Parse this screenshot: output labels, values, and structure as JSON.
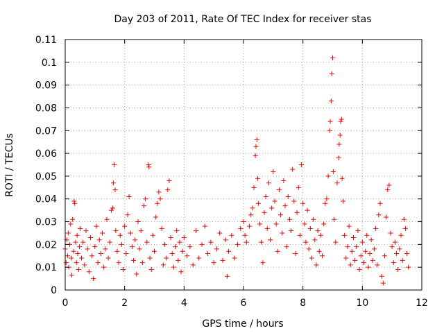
{
  "chart_data": {
    "type": "scatter",
    "title": "Day 203 of 2011, Rate Of TEC Index for receiver stas",
    "xlabel": "GPS time / hours",
    "ylabel": "ROTI / TECUs",
    "xlim": [
      0,
      12
    ],
    "ylim": [
      0,
      0.11
    ],
    "x_ticks": [
      "0",
      "2",
      "4",
      "6",
      "8",
      "10",
      "12"
    ],
    "y_ticks": [
      "0",
      "0.01",
      "0.02",
      "0.03",
      "0.04",
      "0.05",
      "0.06",
      "0.07",
      "0.08",
      "0.09",
      "0.1",
      "0.11"
    ],
    "grid": true,
    "marker": "+",
    "color": "#ff0000",
    "series": [
      {
        "points": [
          [
            0.0,
            0.018
          ],
          [
            0.03,
            0.012
          ],
          [
            0.05,
            0.022
          ],
          [
            0.08,
            0.015
          ],
          [
            0.1,
            0.025
          ],
          [
            0.12,
            0.01
          ],
          [
            0.15,
            0.02
          ],
          [
            0.18,
            0.029
          ],
          [
            0.2,
            0.014
          ],
          [
            0.22,
            0.0065
          ],
          [
            0.25,
            0.031
          ],
          [
            0.28,
            0.017
          ],
          [
            0.3,
            0.039
          ],
          [
            0.32,
            0.038
          ],
          [
            0.35,
            0.021
          ],
          [
            0.38,
            0.012
          ],
          [
            0.4,
            0.024
          ],
          [
            0.42,
            0.016
          ],
          [
            0.45,
            0.009
          ],
          [
            0.48,
            0.019
          ],
          [
            0.5,
            0.027
          ],
          [
            0.55,
            0.014
          ],
          [
            0.6,
            0.021
          ],
          [
            0.65,
            0.011
          ],
          [
            0.7,
            0.026
          ],
          [
            0.75,
            0.018
          ],
          [
            0.8,
            0.008
          ],
          [
            0.85,
            0.023
          ],
          [
            0.9,
            0.015
          ],
          [
            0.95,
            0.005
          ],
          [
            1.0,
            0.019
          ],
          [
            1.05,
            0.028
          ],
          [
            1.1,
            0.012
          ],
          [
            1.15,
            0.022
          ],
          [
            1.2,
            0.016
          ],
          [
            1.25,
            0.025
          ],
          [
            1.3,
            0.01
          ],
          [
            1.35,
            0.018
          ],
          [
            1.4,
            0.031
          ],
          [
            1.45,
            0.014
          ],
          [
            1.5,
            0.021
          ],
          [
            1.55,
            0.035
          ],
          [
            1.6,
            0.036
          ],
          [
            1.62,
            0.047
          ],
          [
            1.65,
            0.055
          ],
          [
            1.68,
            0.044
          ],
          [
            1.7,
            0.026
          ],
          [
            1.75,
            0.017
          ],
          [
            1.8,
            0.012
          ],
          [
            1.85,
            0.024
          ],
          [
            1.9,
            0.02
          ],
          [
            1.95,
            0.009
          ],
          [
            2.0,
            0.028
          ],
          [
            2.05,
            0.016
          ],
          [
            2.1,
            0.033
          ],
          [
            2.15,
            0.041
          ],
          [
            2.2,
            0.025
          ],
          [
            2.25,
            0.019
          ],
          [
            2.3,
            0.013
          ],
          [
            2.35,
            0.022
          ],
          [
            2.4,
            0.007
          ],
          [
            2.45,
            0.03
          ],
          [
            2.5,
            0.018
          ],
          [
            2.55,
            0.026
          ],
          [
            2.6,
            0.012
          ],
          [
            2.65,
            0.037
          ],
          [
            2.7,
            0.04
          ],
          [
            2.75,
            0.021
          ],
          [
            2.8,
            0.055
          ],
          [
            2.82,
            0.054
          ],
          [
            2.85,
            0.014
          ],
          [
            2.9,
            0.009
          ],
          [
            2.95,
            0.024
          ],
          [
            3.0,
            0.017
          ],
          [
            3.05,
            0.032
          ],
          [
            3.1,
            0.038
          ],
          [
            3.15,
            0.043
          ],
          [
            3.2,
            0.04
          ],
          [
            3.25,
            0.027
          ],
          [
            3.3,
            0.011
          ],
          [
            3.35,
            0.02
          ],
          [
            3.4,
            0.014
          ],
          [
            3.45,
            0.044
          ],
          [
            3.5,
            0.048
          ],
          [
            3.55,
            0.023
          ],
          [
            3.6,
            0.016
          ],
          [
            3.65,
            0.01
          ],
          [
            3.7,
            0.019
          ],
          [
            3.75,
            0.026
          ],
          [
            3.8,
            0.013
          ],
          [
            3.85,
            0.021
          ],
          [
            3.9,
            0.008
          ],
          [
            3.95,
            0.017
          ],
          [
            4.0,
            0.023
          ],
          [
            4.1,
            0.015
          ],
          [
            4.2,
            0.019
          ],
          [
            4.3,
            0.011
          ],
          [
            4.4,
            0.026
          ],
          [
            4.5,
            0.014
          ],
          [
            4.6,
            0.02
          ],
          [
            4.7,
            0.028
          ],
          [
            4.8,
            0.016
          ],
          [
            4.9,
            0.021
          ],
          [
            5.0,
            0.012
          ],
          [
            5.1,
            0.018
          ],
          [
            5.2,
            0.025
          ],
          [
            5.3,
            0.013
          ],
          [
            5.4,
            0.022
          ],
          [
            5.45,
            0.006
          ],
          [
            5.5,
            0.017
          ],
          [
            5.6,
            0.024
          ],
          [
            5.7,
            0.014
          ],
          [
            5.8,
            0.02
          ],
          [
            5.9,
            0.027
          ],
          [
            6.0,
            0.03
          ],
          [
            6.05,
            0.024
          ],
          [
            6.1,
            0.021
          ],
          [
            6.2,
            0.028
          ],
          [
            6.25,
            0.033
          ],
          [
            6.3,
            0.036
          ],
          [
            6.35,
            0.045
          ],
          [
            6.4,
            0.059
          ],
          [
            6.42,
            0.063
          ],
          [
            6.45,
            0.066
          ],
          [
            6.48,
            0.049
          ],
          [
            6.5,
            0.038
          ],
          [
            6.55,
            0.029
          ],
          [
            6.6,
            0.021
          ],
          [
            6.65,
            0.012
          ],
          [
            6.7,
            0.034
          ],
          [
            6.75,
            0.041
          ],
          [
            6.8,
            0.027
          ],
          [
            6.85,
            0.047
          ],
          [
            6.9,
            0.022
          ],
          [
            6.95,
            0.036
          ],
          [
            7.0,
            0.052
          ],
          [
            7.05,
            0.039
          ],
          [
            7.1,
            0.029
          ],
          [
            7.15,
            0.017
          ],
          [
            7.2,
            0.044
          ],
          [
            7.25,
            0.033
          ],
          [
            7.3,
            0.025
          ],
          [
            7.35,
            0.048
          ],
          [
            7.4,
            0.037
          ],
          [
            7.45,
            0.019
          ],
          [
            7.5,
            0.041
          ],
          [
            7.55,
            0.031
          ],
          [
            7.6,
            0.026
          ],
          [
            7.65,
            0.053
          ],
          [
            7.7,
            0.039
          ],
          [
            7.75,
            0.016
          ],
          [
            7.8,
            0.034
          ],
          [
            7.85,
            0.045
          ],
          [
            7.9,
            0.024
          ],
          [
            7.95,
            0.055
          ],
          [
            8.0,
            0.038
          ],
          [
            8.05,
            0.029
          ],
          [
            8.1,
            0.021
          ],
          [
            8.15,
            0.035
          ],
          [
            8.2,
            0.018
          ],
          [
            8.25,
            0.027
          ],
          [
            8.3,
            0.014
          ],
          [
            8.35,
            0.031
          ],
          [
            8.4,
            0.022
          ],
          [
            8.45,
            0.011
          ],
          [
            8.5,
            0.026
          ],
          [
            8.55,
            0.017
          ],
          [
            8.6,
            0.024
          ],
          [
            8.65,
            0.015
          ],
          [
            8.7,
            0.029
          ],
          [
            8.75,
            0.038
          ],
          [
            8.8,
            0.04
          ],
          [
            8.85,
            0.05
          ],
          [
            8.9,
            0.07
          ],
          [
            8.92,
            0.074
          ],
          [
            8.95,
            0.083
          ],
          [
            8.97,
            0.095
          ],
          [
            9.0,
            0.102
          ],
          [
            9.02,
            0.052
          ],
          [
            9.05,
            0.031
          ],
          [
            9.1,
            0.021
          ],
          [
            9.15,
            0.047
          ],
          [
            9.2,
            0.058
          ],
          [
            9.22,
            0.064
          ],
          [
            9.25,
            0.068
          ],
          [
            9.27,
            0.074
          ],
          [
            9.3,
            0.075
          ],
          [
            9.32,
            0.049
          ],
          [
            9.35,
            0.039
          ],
          [
            9.4,
            0.024
          ],
          [
            9.45,
            0.014
          ],
          [
            9.5,
            0.019
          ],
          [
            9.55,
            0.028
          ],
          [
            9.6,
            0.011
          ],
          [
            9.65,
            0.017
          ],
          [
            9.7,
            0.023
          ],
          [
            9.75,
            0.013
          ],
          [
            9.8,
            0.019
          ],
          [
            9.85,
            0.026
          ],
          [
            9.9,
            0.009
          ],
          [
            9.95,
            0.015
          ],
          [
            10.0,
            0.021
          ],
          [
            10.05,
            0.012
          ],
          [
            10.1,
            0.017
          ],
          [
            10.15,
            0.024
          ],
          [
            10.2,
            0.01
          ],
          [
            10.25,
            0.016
          ],
          [
            10.3,
            0.022
          ],
          [
            10.35,
            0.013
          ],
          [
            10.4,
            0.018
          ],
          [
            10.45,
            0.027
          ],
          [
            10.5,
            0.011
          ],
          [
            10.55,
            0.033
          ],
          [
            10.6,
            0.038
          ],
          [
            10.65,
            0.006
          ],
          [
            10.7,
            0.003
          ],
          [
            10.75,
            0.015
          ],
          [
            10.8,
            0.032
          ],
          [
            10.85,
            0.044
          ],
          [
            10.9,
            0.046
          ],
          [
            10.95,
            0.025
          ],
          [
            11.0,
            0.019
          ],
          [
            11.05,
            0.012
          ],
          [
            11.1,
            0.021
          ],
          [
            11.15,
            0.016
          ],
          [
            11.2,
            0.009
          ],
          [
            11.25,
            0.018
          ],
          [
            11.3,
            0.024
          ],
          [
            11.35,
            0.013
          ],
          [
            11.4,
            0.031
          ],
          [
            11.45,
            0.027
          ],
          [
            11.5,
            0.016
          ],
          [
            11.55,
            0.01
          ]
        ]
      }
    ]
  }
}
